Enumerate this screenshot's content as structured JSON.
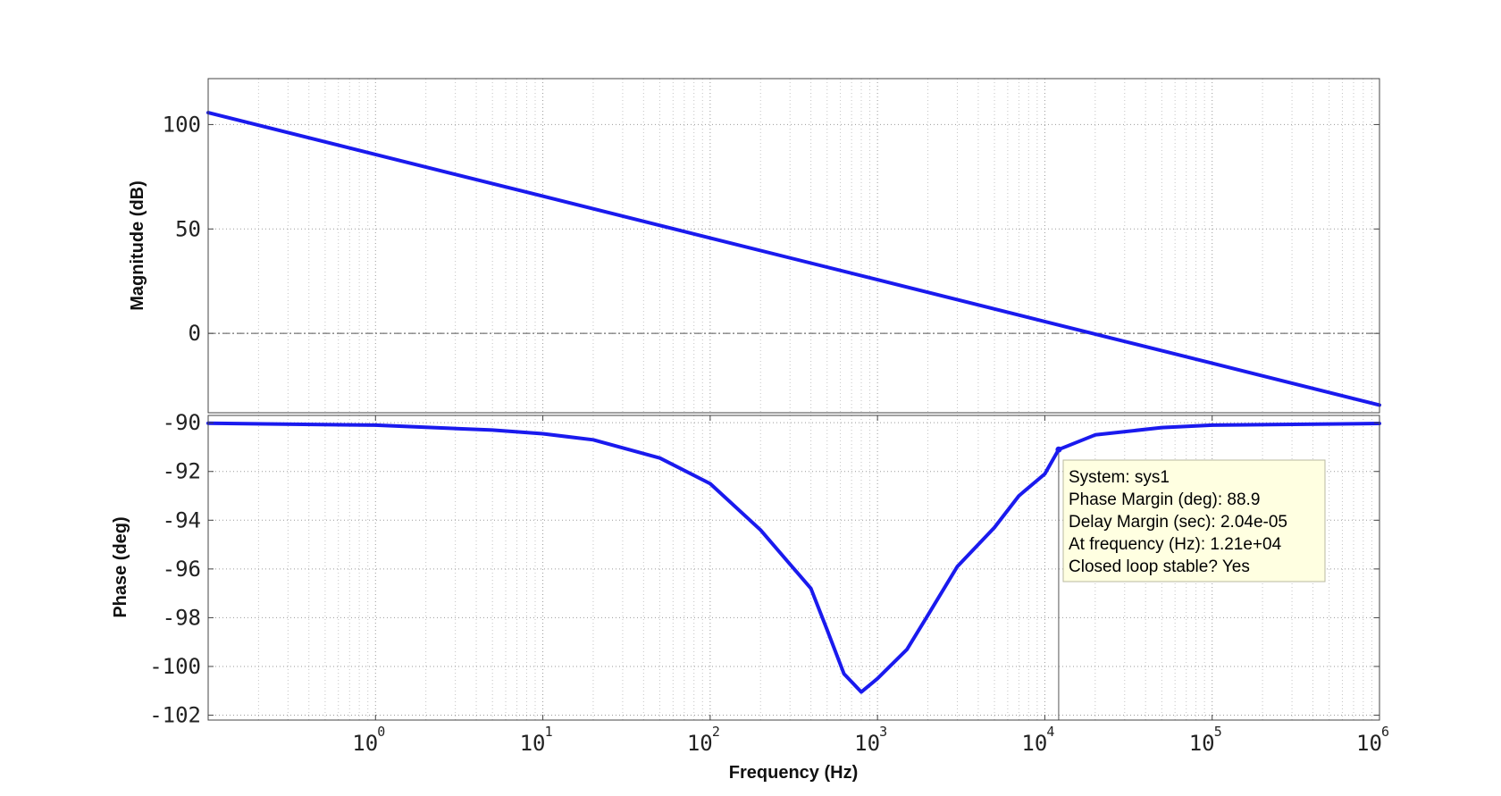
{
  "chart_data": {
    "type": "line",
    "x_scale": "log",
    "xlabel": "Frequency  (Hz)",
    "xlim": [
      0.1,
      1000000
    ],
    "x_ticks": [
      {
        "value": 1,
        "base": "10",
        "exp": "0"
      },
      {
        "value": 10,
        "base": "10",
        "exp": "1"
      },
      {
        "value": 100,
        "base": "10",
        "exp": "2"
      },
      {
        "value": 1000,
        "base": "10",
        "exp": "3"
      },
      {
        "value": 10000,
        "base": "10",
        "exp": "4"
      },
      {
        "value": 100000,
        "base": "10",
        "exp": "5"
      },
      {
        "value": 1000000,
        "base": "10",
        "exp": "6"
      }
    ],
    "grid": true,
    "line_color": "#1a1aee",
    "panels": [
      {
        "name": "magnitude",
        "ylabel": "Magnitude (dB)",
        "ylim": [
          -38,
          122
        ],
        "y_ticks": [
          {
            "value": 100,
            "label": "100"
          },
          {
            "value": 50,
            "label": "50"
          },
          {
            "value": 0,
            "label": "0"
          }
        ],
        "zero_line": true,
        "series": [
          {
            "x": [
              0.1,
              1,
              10,
              100,
              1000,
              10000,
              100000,
              1000000
            ],
            "y": [
              105.7,
              85.7,
              65.7,
              45.7,
              25.7,
              5.7,
              -14.3,
              -34.3
            ]
          }
        ]
      },
      {
        "name": "phase",
        "ylabel": "Phase (deg)",
        "ylim": [
          -102.2,
          -89.7
        ],
        "y_ticks": [
          {
            "value": -90,
            "label": "-90"
          },
          {
            "value": -92,
            "label": "-92"
          },
          {
            "value": -94,
            "label": "-94"
          },
          {
            "value": -96,
            "label": "-96"
          },
          {
            "value": -98,
            "label": "-98"
          },
          {
            "value": -100,
            "label": "-100"
          },
          {
            "value": -102,
            "label": "-102"
          }
        ],
        "series": [
          {
            "x": [
              0.1,
              1,
              5,
              10,
              20,
              50,
              100,
              200,
              400,
              500,
              630,
              800,
              1000,
              1500,
              2000,
              3000,
              5000,
              7000,
              10000,
              12100,
              20000,
              50000,
              100000,
              1000000
            ],
            "y": [
              -90.02,
              -90.1,
              -90.3,
              -90.45,
              -90.7,
              -91.45,
              -92.5,
              -94.4,
              -96.8,
              -98.5,
              -100.3,
              -101.05,
              -100.5,
              -99.3,
              -97.9,
              -95.9,
              -94.3,
              -93.0,
              -92.1,
              -91.1,
              -90.5,
              -90.2,
              -90.1,
              -90.03
            ]
          }
        ],
        "marker": {
          "x": 12100,
          "y": -91.1
        },
        "annotation": {
          "lines": [
            "System: sys1",
            "Phase Margin (deg): 88.9",
            "Delay Margin (sec): 2.04e-05",
            "At frequency (Hz): 1.21e+04",
            "Closed loop stable? Yes"
          ]
        }
      }
    ]
  }
}
